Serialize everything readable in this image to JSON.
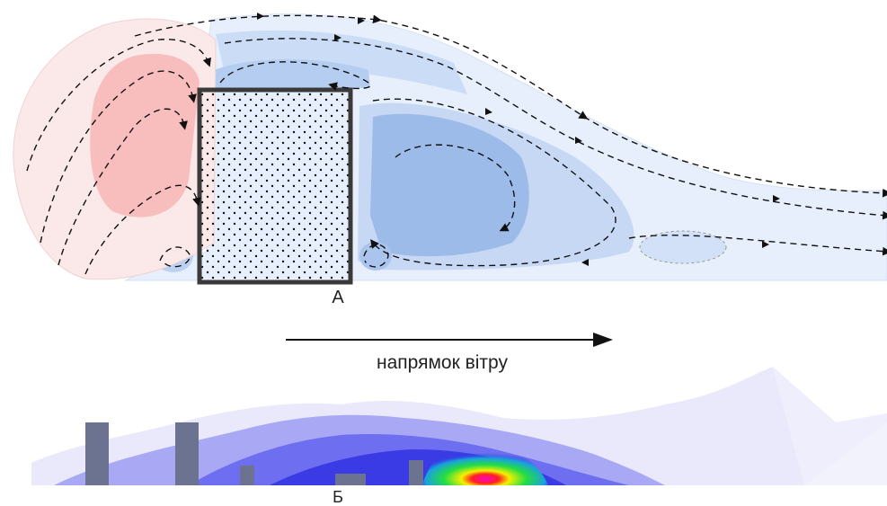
{
  "panel_a": {
    "label": "А"
  },
  "wind": {
    "label": "напрямок вітру"
  },
  "panel_b": {
    "label": "Б"
  },
  "colors": {
    "background": "#ffffff",
    "upwind_vortex": "#f7b8b8",
    "upwind_halo": "#fbe9e9",
    "wake_core": "#9dbbe9",
    "wake_mid": "#c6d8f4",
    "wake_outer": "#e6effb",
    "building_outline": "#3a3a3a",
    "building_hatch": "#111111",
    "streamline": "#111111",
    "cfd_low": "#e9e9fb",
    "cfd_mid": "#7d7df0",
    "cfd_high": "#2a2ae0",
    "cfd_hot_green": "#22dd44",
    "cfd_hot_yellow": "#f4f000",
    "cfd_hot_red": "#ff2020",
    "cfd_hot_magenta": "#ff00cc",
    "obstacle": "#6b7390"
  },
  "icons": {
    "streamline_arrow": "arrowhead",
    "wind_arrow": "long-arrow-right"
  }
}
